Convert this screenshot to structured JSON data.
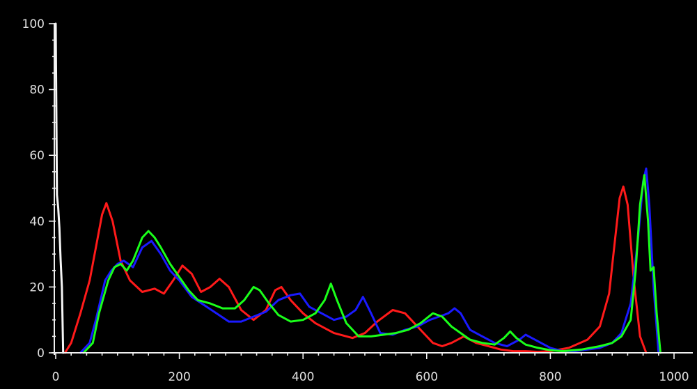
{
  "chart_data": {
    "type": "line",
    "title": "",
    "xlabel": "",
    "ylabel": "",
    "xlim": [
      0,
      1020
    ],
    "ylim": [
      0,
      100
    ],
    "grid": false,
    "legend": "none",
    "x_ticks": [
      0,
      200,
      400,
      600,
      800,
      1000
    ],
    "y_ticks": [
      0,
      20,
      40,
      60,
      80,
      100
    ],
    "x_tick_labels": [
      "0",
      "200",
      "400",
      "600",
      "800",
      "1000"
    ],
    "y_tick_labels": [
      "0",
      "20",
      "40",
      "60",
      "80",
      "100"
    ],
    "series": [
      {
        "color": "#ff1a1a",
        "x": [
          15,
          25,
          40,
          55,
          65,
          75,
          82,
          92,
          105,
          120,
          140,
          160,
          175,
          190,
          205,
          220,
          235,
          250,
          265,
          280,
          300,
          320,
          340,
          355,
          365,
          380,
          400,
          420,
          450,
          480,
          500,
          520,
          545,
          565,
          590,
          610,
          625,
          640,
          660,
          680,
          700,
          720,
          740,
          760,
          780,
          800,
          830,
          860,
          880,
          895,
          905,
          912,
          918,
          925,
          935,
          945,
          955
        ],
        "y": [
          0,
          3,
          12,
          22,
          32,
          42,
          45.5,
          40,
          28,
          22,
          18.5,
          19.5,
          18,
          22,
          26.5,
          24,
          18.5,
          20,
          22.5,
          20,
          13,
          10,
          13,
          19,
          20,
          16,
          12,
          9,
          6,
          4.5,
          6,
          9.5,
          13,
          12,
          7,
          3,
          2,
          3,
          5,
          3,
          2,
          1,
          0.5,
          0.5,
          0.3,
          0.5,
          1.5,
          4,
          8,
          18,
          35,
          47,
          50.5,
          45,
          22,
          5,
          0
        ]
      },
      {
        "color": "#1a1aff",
        "x": [
          40,
          55,
          65,
          80,
          90,
          100,
          110,
          125,
          140,
          155,
          170,
          185,
          200,
          220,
          240,
          260,
          280,
          300,
          320,
          340,
          360,
          380,
          395,
          410,
          430,
          450,
          470,
          485,
          497,
          510,
          525,
          545,
          565,
          585,
          605,
          620,
          635,
          645,
          655,
          670,
          690,
          710,
          730,
          750,
          760,
          775,
          800,
          820,
          840,
          860,
          880,
          900,
          915,
          930,
          942,
          950,
          955,
          960,
          967,
          975
        ],
        "y": [
          0,
          3,
          10,
          22,
          25,
          27,
          28,
          26,
          32,
          34,
          30,
          25,
          22,
          17,
          14.5,
          12,
          9.5,
          9.5,
          11,
          12.5,
          16,
          17.5,
          18,
          14,
          12,
          10,
          11,
          13,
          17,
          12,
          6,
          5.5,
          7,
          8,
          10,
          11,
          12,
          13.5,
          12,
          7,
          5,
          3,
          2,
          4,
          5.5,
          4,
          1.5,
          0.5,
          0.5,
          1,
          1.5,
          3,
          6,
          15,
          35,
          52,
          56,
          45,
          20,
          0
        ]
      },
      {
        "color": "#1aff1a",
        "x": [
          45,
          60,
          70,
          85,
          95,
          105,
          115,
          125,
          140,
          150,
          160,
          170,
          185,
          200,
          215,
          230,
          250,
          270,
          290,
          305,
          320,
          330,
          345,
          360,
          380,
          400,
          420,
          435,
          445,
          455,
          470,
          490,
          510,
          530,
          550,
          570,
          590,
          610,
          625,
          640,
          655,
          670,
          690,
          710,
          725,
          735,
          745,
          760,
          780,
          800,
          820,
          850,
          880,
          900,
          915,
          930,
          938,
          945,
          952,
          958,
          962,
          967,
          972,
          978
        ],
        "y": [
          0,
          3,
          12,
          22,
          26,
          27,
          25,
          28,
          35,
          37,
          35,
          32,
          27,
          23,
          19,
          16,
          15,
          13.5,
          13.5,
          16,
          20,
          19,
          15,
          11.5,
          9.5,
          10,
          12,
          16,
          21,
          16,
          9,
          5,
          5,
          5.5,
          6,
          7,
          9,
          12,
          11,
          8,
          6,
          4,
          3,
          2.5,
          4.5,
          6.5,
          4.5,
          2.5,
          1.5,
          0.8,
          0.5,
          1,
          2,
          3,
          5,
          10,
          25,
          45,
          54,
          40,
          25,
          26,
          12,
          0
        ]
      },
      {
        "color": "#f5f5f5",
        "x": [
          0,
          2,
          4,
          6,
          8,
          10,
          12
        ],
        "y": [
          100,
          48,
          44,
          38,
          28,
          20,
          0
        ]
      }
    ]
  }
}
